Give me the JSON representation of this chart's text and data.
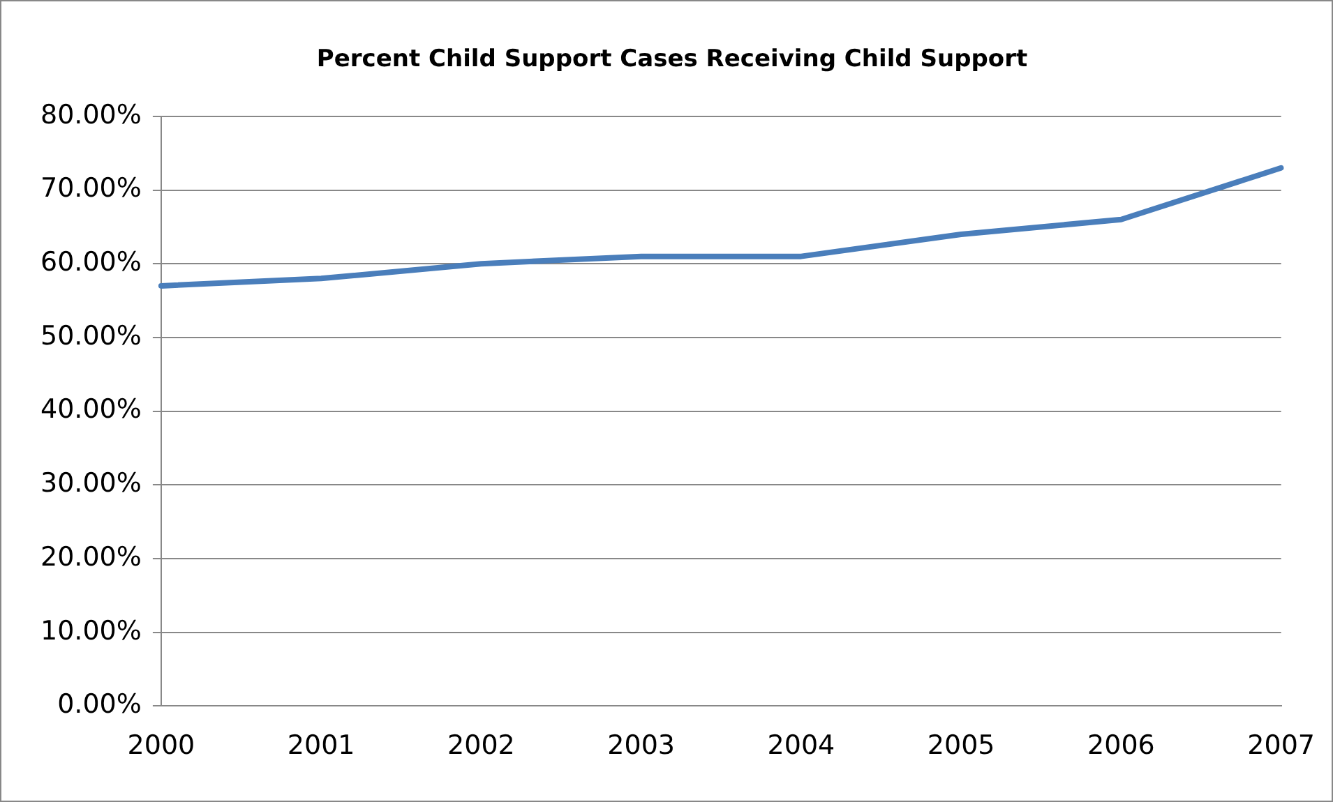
{
  "chart_data": {
    "type": "line",
    "title": "Percent Child Support Cases Receiving Child Support",
    "categories": [
      "2000",
      "2001",
      "2002",
      "2003",
      "2004",
      "2005",
      "2006",
      "2007"
    ],
    "series": [
      {
        "color": "#4a7ebb",
        "values": [
          57,
          58,
          60,
          61,
          61,
          64,
          66,
          73
        ]
      }
    ],
    "ylim": [
      0,
      80
    ],
    "yticks": [
      {
        "value": 0,
        "label": "0.00%"
      },
      {
        "value": 10,
        "label": "10.00%"
      },
      {
        "value": 20,
        "label": "20.00%"
      },
      {
        "value": 30,
        "label": "30.00%"
      },
      {
        "value": 40,
        "label": "40.00%"
      },
      {
        "value": 50,
        "label": "50.00%"
      },
      {
        "value": 60,
        "label": "60.00%"
      },
      {
        "value": 70,
        "label": "70.00%"
      },
      {
        "value": 80,
        "label": "80.00%"
      }
    ],
    "grid": "y",
    "legend": false,
    "marker": "none",
    "line_style": "solid"
  }
}
